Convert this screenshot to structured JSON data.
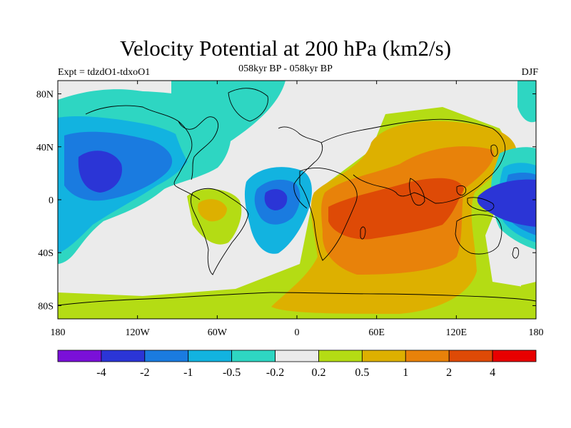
{
  "figure": {
    "title": "Velocity Potential at 200 hPa (km2/s)",
    "subtitle": "058kyr BP - 058kyr BP",
    "left_label": "Expt = tdzdO1-tdxoO1",
    "right_label": "DJF"
  },
  "axes": {
    "x_ticks": [
      "180",
      "120W",
      "60W",
      "0",
      "60E",
      "120E",
      "180"
    ],
    "y_ticks": [
      "80N",
      "40N",
      "0",
      "40S",
      "80S"
    ]
  },
  "colorbar": {
    "labels": [
      "-4",
      "-2",
      "-1",
      "-0.5",
      "-0.2",
      "0.2",
      "0.5",
      "1",
      "2",
      "4"
    ],
    "colors": [
      "#7a10d8",
      "#2b35d6",
      "#1a7be0",
      "#12b3e0",
      "#2ed6c2",
      "#ebebeb",
      "#b4dc14",
      "#ddb000",
      "#e8820a",
      "#de4a06",
      "#e80000"
    ]
  },
  "map": {
    "projection": "cylindrical equidistant",
    "lon_range": [
      -180,
      180
    ],
    "lat_range": [
      -90,
      90
    ]
  }
}
